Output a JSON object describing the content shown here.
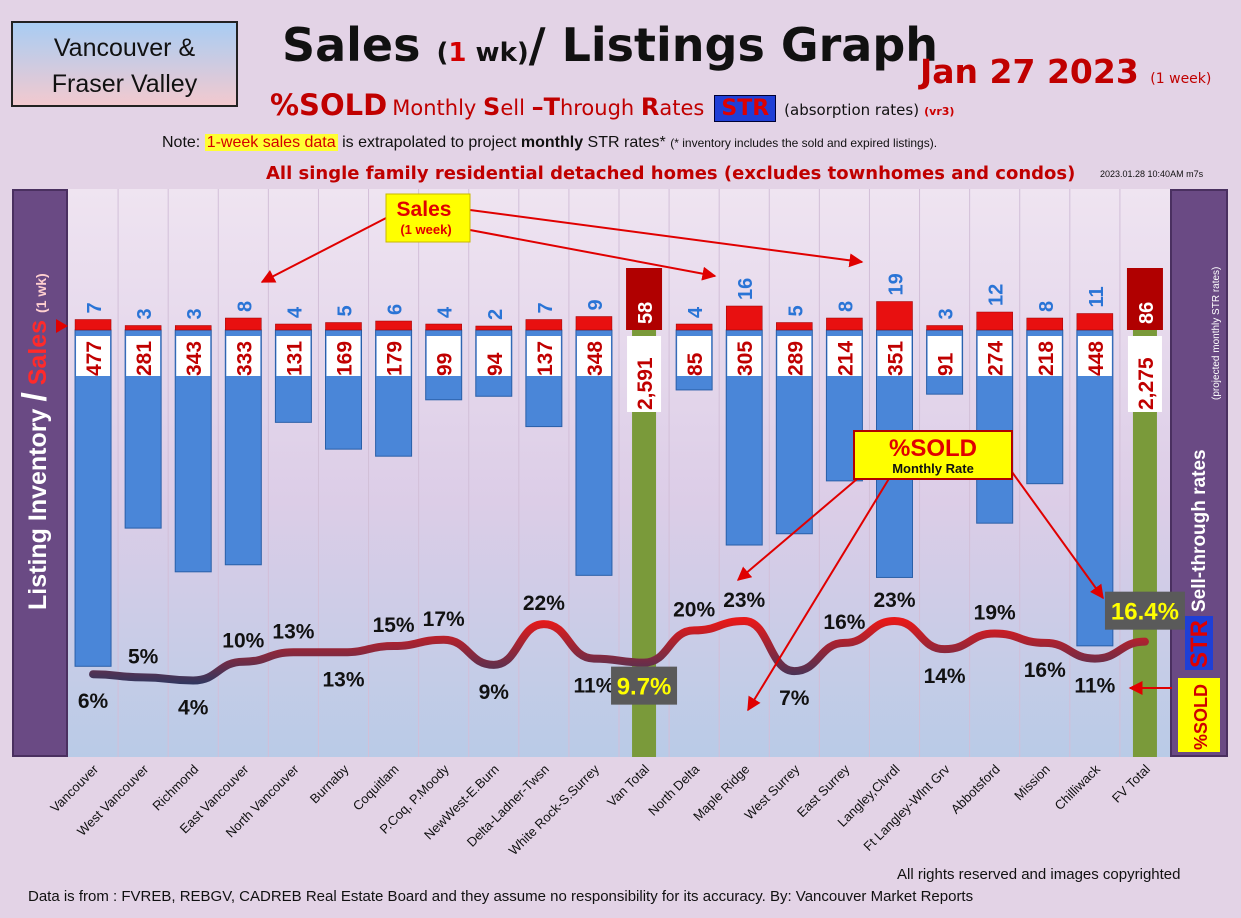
{
  "region_box": {
    "line1": "Vancouver &",
    "line2": "Fraser Valley"
  },
  "title": {
    "part1": "Sales ",
    "paren_open": "(",
    "num": "1",
    "paren_rest": " wk)",
    "part2": "/ Listings Graph"
  },
  "date": {
    "main": "Jan 27  2023",
    "note": "(1 week)"
  },
  "subtitle": {
    "big": "%SOLD",
    "m1": "Monthly ",
    "S": "S",
    "ell": "ell ",
    "dash_T": "–T",
    "hrough": "hrough ",
    "R": "R",
    "ates": "ates",
    "str": "STR",
    "absorption": "(absorption rates)",
    "version": "(vr3)"
  },
  "note": {
    "prefix": "Note: ",
    "highlight": "1-week sales data",
    "middle": " is extrapolated to project ",
    "bold": "monthly",
    "suffix": " STR rates* ",
    "small": "(* inventory includes the sold and expired listings)."
  },
  "subhead": "All single family residential detached homes (excludes townhomes and condos)",
  "timestamp": "2023.01.28 10:40AM m7s",
  "left_axis": {
    "part1": "Listing Inventory ",
    "slash": "/",
    "part2": " Sales",
    "small": "(1 wk)"
  },
  "right_axis": {
    "small": "(projected monthly STR rates)",
    "main": "Sell-through rates",
    "str": "STR",
    "sold": "%SOLD"
  },
  "callouts": {
    "sales_title": "Sales",
    "sales_sub": "(1 week)",
    "sold_title": "%SOLD",
    "sold_sub": "Monthly Rate"
  },
  "footer": {
    "rights": "All rights reserved and  images copyrighted",
    "source": "Data is from : FVREB, REBGV, CADREB Real Estate Board and they assume no responsibility for its accuracy. By: Vancouver Market Reports"
  },
  "colors": {
    "inventory_bar": "#4a86d8",
    "total_bar": "#7a9a3a",
    "sales_bar": "#e81010",
    "total_sales_bar": "#b00000",
    "line_low": "#1e3a66",
    "line_high": "#e81818",
    "panel": "#6a4a84"
  },
  "chart_data": {
    "type": "bar",
    "title": "Sales (1 wk)/ Listings Graph",
    "categories": [
      "Vancouver",
      "West Vancouver",
      "Richmond",
      "East Vancouver",
      "North Vancouver",
      "Burnaby",
      "Coquitlam",
      "P.Coq, P.Moody",
      "NewWest-E.Burn",
      "Delta-Ladner-Twsn",
      "White Rock-S.Surrey",
      "Van Total",
      "North Delta",
      "Maple Ridge",
      "West Surrey",
      "East Surrey",
      "Langley,Clvrdl",
      "Ft Langley-Wlnt Grv",
      "Abbotsford",
      "Mission",
      "Chilliwack",
      "FV Total"
    ],
    "totals": [
      false,
      false,
      false,
      false,
      false,
      false,
      false,
      false,
      false,
      false,
      false,
      true,
      false,
      false,
      false,
      false,
      false,
      false,
      false,
      false,
      false,
      true
    ],
    "series": [
      {
        "name": "Sales",
        "values": [
          7,
          3,
          3,
          8,
          4,
          5,
          6,
          4,
          2,
          7,
          9,
          58,
          4,
          16,
          5,
          8,
          19,
          3,
          12,
          8,
          11,
          86
        ]
      },
      {
        "name": "Listing Inventory",
        "values": [
          477,
          281,
          343,
          333,
          131,
          169,
          179,
          99,
          94,
          137,
          348,
          2591,
          85,
          305,
          289,
          214,
          351,
          91,
          274,
          218,
          448,
          2275
        ]
      },
      {
        "name": "%SOLD",
        "values": [
          6,
          5,
          4,
          10,
          13,
          13,
          15,
          17,
          9,
          22,
          11,
          9.7,
          20,
          23,
          7,
          16,
          23,
          14,
          19,
          16,
          11,
          16.4
        ]
      }
    ],
    "sold_labels": [
      "6%",
      "5%",
      "4%",
      "10%",
      "13%",
      "13%",
      "15%",
      "17%",
      "9%",
      "22%",
      "11%",
      "9.7%",
      "20%",
      "23%",
      "7%",
      "16%",
      "23%",
      "14%",
      "19%",
      "16%",
      "11%",
      "16.4%"
    ],
    "inventory_labels": [
      "477",
      "281",
      "343",
      "333",
      "131",
      "169",
      "179",
      "99",
      "94",
      "137",
      "348",
      "2,591",
      "85",
      "305",
      "289",
      "214",
      "351",
      "91",
      "274",
      "218",
      "448",
      "2,275"
    ],
    "ylabel_left": "Listing Inventory / Sales (1 wk)",
    "ylabel_right": "Sell-through rates (projected monthly STR rates)"
  }
}
